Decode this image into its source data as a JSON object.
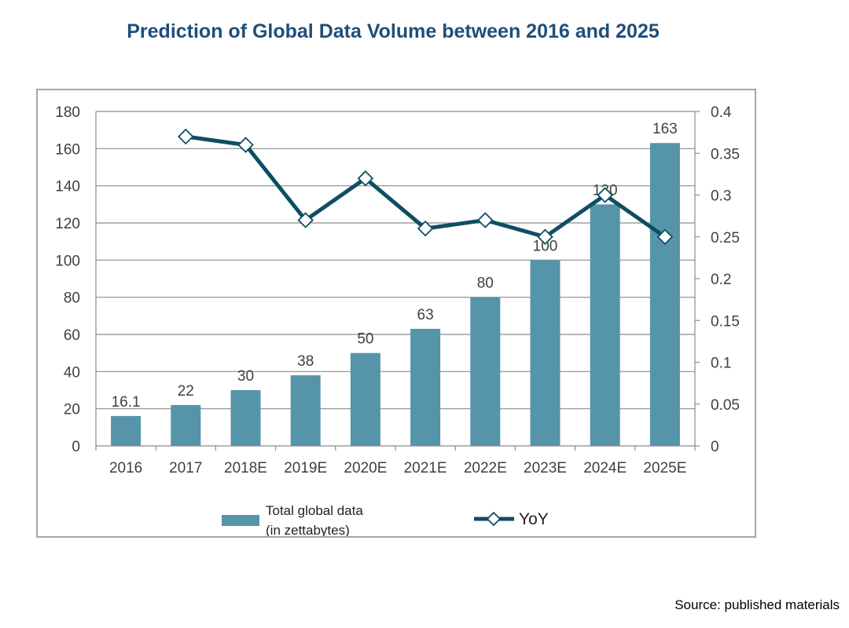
{
  "title": "Prediction of Global Data Volume between 2016 and 2025",
  "source": "Source: published materials",
  "colors": {
    "bar": "#5694aa",
    "line": "#0e4e63",
    "title": "#1f4e79",
    "grid": "#8c8c8c"
  },
  "chart_data": {
    "type": "bar+line",
    "categories": [
      "2016",
      "2017",
      "2018E",
      "2019E",
      "2020E",
      "2021E",
      "2022E",
      "2023E",
      "2024E",
      "2025E"
    ],
    "series": [
      {
        "name": "Total global data (in zettabytes)",
        "name_lines": [
          "Total global data",
          "(in zettabytes)"
        ],
        "type": "bar",
        "axis": "left",
        "values": [
          16.1,
          22,
          30,
          38,
          50,
          63,
          80,
          100,
          130,
          163
        ],
        "labels": [
          "16.1",
          "22",
          "30",
          "38",
          "50",
          "63",
          "80",
          "100",
          "130",
          "163"
        ]
      },
      {
        "name": "YoY",
        "type": "line",
        "axis": "right",
        "values": [
          null,
          0.37,
          0.36,
          0.27,
          0.32,
          0.26,
          0.27,
          0.25,
          0.3,
          0.25
        ]
      }
    ],
    "y_left": {
      "min": 0,
      "max": 180,
      "ticks": [
        "0",
        "20",
        "40",
        "60",
        "80",
        "100",
        "120",
        "140",
        "160",
        "180"
      ]
    },
    "y_right": {
      "min": 0,
      "max": 0.4,
      "ticks": [
        "0",
        "0.05",
        "0.1",
        "0.15",
        "0.2",
        "0.25",
        "0.3",
        "0.35",
        "0.4"
      ]
    },
    "grid": true,
    "legend_position": "bottom"
  }
}
